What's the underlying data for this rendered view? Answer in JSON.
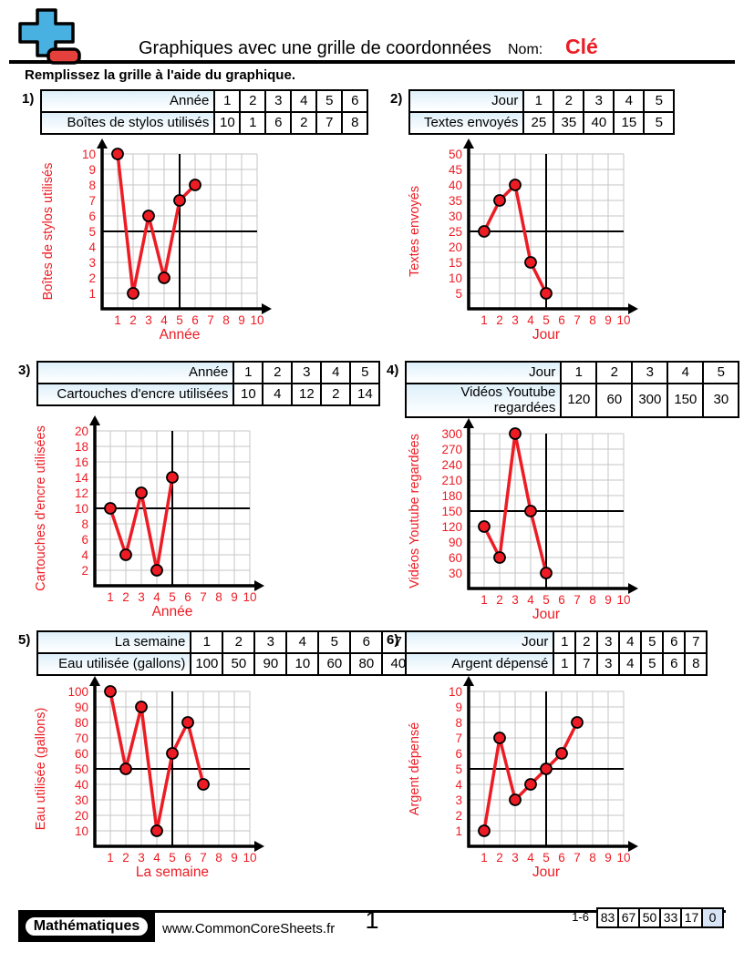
{
  "header": {
    "logo_icon": "plus-minus-icon",
    "title": "Graphiques avec une grille de coordonnées",
    "name_label": "Nom:",
    "name_value": "Clé",
    "instruction": "Remplissez la grille à l'aide du graphique."
  },
  "problems": [
    {
      "number": "1)",
      "table": {
        "rows": [
          {
            "label": "Année",
            "values": [
              "1",
              "2",
              "3",
              "4",
              "5",
              "6"
            ]
          },
          {
            "label": "Boîtes de stylos utilisés",
            "values": [
              "10",
              "1",
              "6",
              "2",
              "7",
              "8"
            ]
          }
        ]
      }
    },
    {
      "number": "2)",
      "table": {
        "rows": [
          {
            "label": "Jour",
            "values": [
              "1",
              "2",
              "3",
              "4",
              "5"
            ]
          },
          {
            "label": "Textes envoyés",
            "values": [
              "25",
              "35",
              "40",
              "15",
              "5"
            ]
          }
        ]
      }
    },
    {
      "number": "3)",
      "table": {
        "rows": [
          {
            "label": "Année",
            "values": [
              "1",
              "2",
              "3",
              "4",
              "5"
            ]
          },
          {
            "label": "Cartouches d'encre utilisées",
            "values": [
              "10",
              "4",
              "12",
              "2",
              "14"
            ]
          }
        ]
      }
    },
    {
      "number": "4)",
      "table": {
        "rows": [
          {
            "label": "Jour",
            "values": [
              "1",
              "2",
              "3",
              "4",
              "5"
            ]
          },
          {
            "label": "Vidéos Youtube regardées",
            "values": [
              "120",
              "60",
              "300",
              "150",
              "30"
            ]
          }
        ]
      }
    },
    {
      "number": "5)",
      "table": {
        "rows": [
          {
            "label": "La semaine",
            "values": [
              "1",
              "2",
              "3",
              "4",
              "5",
              "6",
              "7"
            ]
          },
          {
            "label": "Eau utilisée (gallons)",
            "values": [
              "100",
              "50",
              "90",
              "10",
              "60",
              "80",
              "40"
            ]
          }
        ]
      }
    },
    {
      "number": "6)",
      "table": {
        "rows": [
          {
            "label": "Jour",
            "values": [
              "1",
              "2",
              "3",
              "4",
              "5",
              "6",
              "7"
            ]
          },
          {
            "label": "Argent dépensé",
            "values": [
              "1",
              "7",
              "3",
              "4",
              "5",
              "6",
              "8"
            ]
          }
        ]
      }
    }
  ],
  "chart_data": [
    {
      "type": "line",
      "xlabel": "Année",
      "ylabel": "Boîtes de stylos utilisés",
      "x": [
        1,
        2,
        3,
        4,
        5,
        6
      ],
      "y": [
        10,
        1,
        6,
        2,
        7,
        8
      ],
      "x_ticks": [
        1,
        2,
        3,
        4,
        5,
        6,
        7,
        8,
        9,
        10
      ],
      "y_ticks": [
        1,
        2,
        3,
        4,
        5,
        6,
        7,
        8,
        9,
        10
      ],
      "xlim": [
        0,
        10
      ],
      "ylim": [
        0,
        10
      ],
      "grid": true,
      "crosshair_x": 5,
      "crosshair_y": 5
    },
    {
      "type": "line",
      "xlabel": "Jour",
      "ylabel": "Textes envoyés",
      "x": [
        1,
        2,
        3,
        4,
        5
      ],
      "y": [
        25,
        35,
        40,
        15,
        5
      ],
      "x_ticks": [
        1,
        2,
        3,
        4,
        5,
        6,
        7,
        8,
        9,
        10
      ],
      "y_ticks": [
        5,
        10,
        15,
        20,
        25,
        30,
        35,
        40,
        45,
        50
      ],
      "xlim": [
        0,
        10
      ],
      "ylim": [
        0,
        50
      ],
      "grid": true,
      "crosshair_x": 5,
      "crosshair_y": 25
    },
    {
      "type": "line",
      "xlabel": "Année",
      "ylabel": "Cartouches d'encre utilisées",
      "x": [
        1,
        2,
        3,
        4,
        5
      ],
      "y": [
        10,
        4,
        12,
        2,
        14
      ],
      "x_ticks": [
        1,
        2,
        3,
        4,
        5,
        6,
        7,
        8,
        9,
        10
      ],
      "y_ticks": [
        2,
        4,
        6,
        8,
        10,
        12,
        14,
        16,
        18,
        20
      ],
      "xlim": [
        0,
        10
      ],
      "ylim": [
        0,
        20
      ],
      "grid": true,
      "crosshair_x": 5,
      "crosshair_y": 10
    },
    {
      "type": "line",
      "xlabel": "Jour",
      "ylabel": "Vidéos Youtube regardées",
      "x": [
        1,
        2,
        3,
        4,
        5
      ],
      "y": [
        120,
        60,
        300,
        150,
        30
      ],
      "x_ticks": [
        1,
        2,
        3,
        4,
        5,
        6,
        7,
        8,
        9,
        10
      ],
      "y_ticks": [
        30,
        60,
        90,
        120,
        150,
        180,
        210,
        240,
        270,
        300
      ],
      "xlim": [
        0,
        10
      ],
      "ylim": [
        0,
        300
      ],
      "grid": true,
      "crosshair_x": 5,
      "crosshair_y": 150
    },
    {
      "type": "line",
      "xlabel": "La semaine",
      "ylabel": "Eau utilisée (gallons)",
      "x": [
        1,
        2,
        3,
        4,
        5,
        6,
        7
      ],
      "y": [
        100,
        50,
        90,
        10,
        60,
        80,
        40
      ],
      "x_ticks": [
        1,
        2,
        3,
        4,
        5,
        6,
        7,
        8,
        9,
        10
      ],
      "y_ticks": [
        10,
        20,
        30,
        40,
        50,
        60,
        70,
        80,
        90,
        100
      ],
      "xlim": [
        0,
        10
      ],
      "ylim": [
        0,
        100
      ],
      "grid": true,
      "crosshair_x": 5,
      "crosshair_y": 50
    },
    {
      "type": "line",
      "xlabel": "Jour",
      "ylabel": "Argent dépensé",
      "x": [
        1,
        2,
        3,
        4,
        5,
        6,
        7
      ],
      "y": [
        1,
        7,
        3,
        4,
        5,
        6,
        8
      ],
      "x_ticks": [
        1,
        2,
        3,
        4,
        5,
        6,
        7,
        8,
        9,
        10
      ],
      "y_ticks": [
        1,
        2,
        3,
        4,
        5,
        6,
        7,
        8,
        9,
        10
      ],
      "xlim": [
        0,
        10
      ],
      "ylim": [
        0,
        10
      ],
      "grid": true,
      "crosshair_x": 5,
      "crosshair_y": 5
    }
  ],
  "footer": {
    "brand": "Mathématiques",
    "website": "www.CommonCoreSheets.fr",
    "page_number": "1",
    "score_label": "1-6",
    "score_values": [
      "83",
      "67",
      "50",
      "33",
      "17",
      "0"
    ],
    "score_highlight_index": 5
  },
  "colors": {
    "accent_red": "#ed1c24",
    "logo_blue": "#49b1e2",
    "logo_red": "#e5403c",
    "grid_gray": "#c6c6c6",
    "table_label_bg": "#def0fa",
    "score_highlight_bg": "#d8e5f6"
  }
}
